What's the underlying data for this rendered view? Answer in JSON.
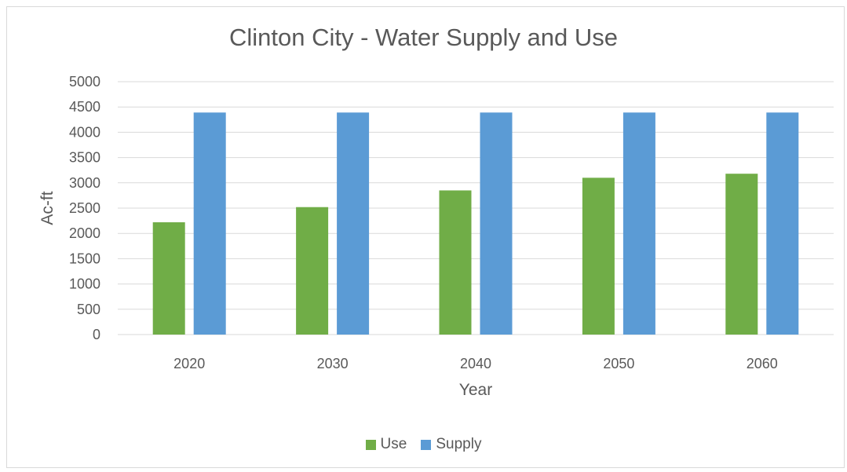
{
  "chart_data": {
    "type": "bar",
    "title": "Clinton City - Water Supply and Use",
    "xlabel": "Year",
    "ylabel": "Ac-ft",
    "categories": [
      "2020",
      "2030",
      "2040",
      "2050",
      "2060"
    ],
    "series": [
      {
        "name": "Use",
        "color": "#70ad47",
        "values": [
          2220,
          2520,
          2850,
          3100,
          3180
        ]
      },
      {
        "name": "Supply",
        "color": "#5b9bd5",
        "values": [
          4390,
          4390,
          4390,
          4390,
          4390
        ]
      }
    ],
    "ylim": [
      0,
      5000
    ],
    "yticks": [
      "0",
      "500",
      "1000",
      "1500",
      "2000",
      "2500",
      "3000",
      "3500",
      "4000",
      "4500",
      "5000"
    ],
    "grid": true,
    "legend_position": "bottom"
  }
}
